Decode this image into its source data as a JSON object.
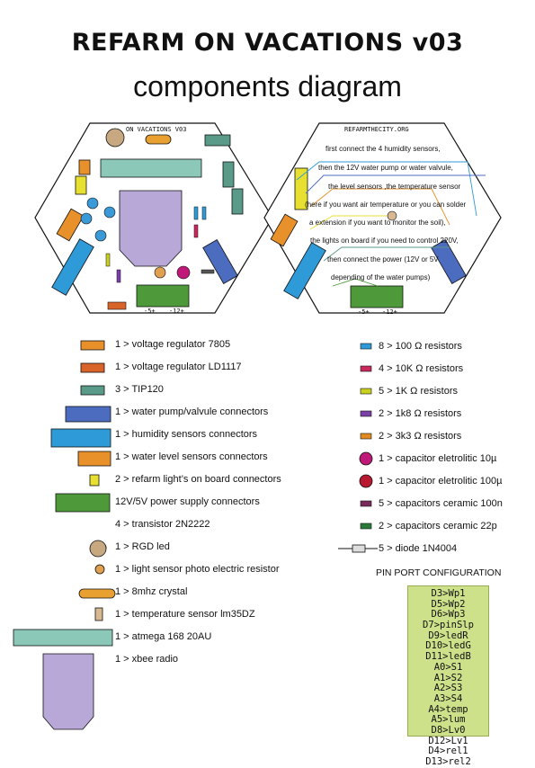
{
  "title": "REFARM ON VACATIONS v03",
  "subtitle": "components diagram",
  "left_board": {
    "label": "ON VACATIONS V03",
    "bottom_labels": [
      "-5+",
      "-12+"
    ]
  },
  "right_board": {
    "label": "REFARMTHECITY.ORG",
    "bottom_labels": [
      "-5+",
      "-12+"
    ],
    "notes": [
      "first connect the 4 humidity sensors,",
      "then the 12V water pump or water valvule,",
      "the level sensors ,the temperature sensor",
      "(here if you want air temperature or you can solder",
      "a extension if you want to monitor the soil),",
      "the lights on board if you need to control 220V,",
      "then connect the power (12V or 5V",
      "depending of the water pumps)"
    ]
  },
  "left_components": [
    {
      "text": "1 > voltage regulator 7805",
      "color": "#e8902a"
    },
    {
      "text": "1 > voltage regulator LD1117",
      "color": "#d8642a"
    },
    {
      "text": "3 > TIP120",
      "color": "#5a9a88"
    },
    {
      "text": "1 > water pump/valvule connectors",
      "color": "#4c6cc0"
    },
    {
      "text": "1 > humidity sensors connectors",
      "color": "#2f9ad8"
    },
    {
      "text": "1 > water level sensors connectors",
      "color": "#e8902a"
    },
    {
      "text": "2 > refarm light’s on board connectors",
      "color": "#e8e030"
    },
    {
      "text": "12V/5V power supply connectors",
      "color": "#4e9a3a"
    },
    {
      "text": "4 > transistor 2N2222",
      "color": "#3a9ad8"
    },
    {
      "text": "1 > RGD led",
      "color": "#c8a880"
    },
    {
      "text": "1 > light sensor photo electric resistor",
      "color": "#e0a050"
    },
    {
      "text": "1 > 8mhz crystal",
      "color": "#e8a030"
    },
    {
      "text": "1 > temperature sensor lm35DZ",
      "color": "#d8b890"
    },
    {
      "text": "1 > atmega 168 20AU",
      "color": "#8cc8b8"
    },
    {
      "text": "1 > xbee radio",
      "color": "#b8a8d8"
    }
  ],
  "right_components": [
    {
      "text": "8 > 100 Ω resistors",
      "color": "#2f9ad8"
    },
    {
      "text": "4 > 10K Ω resistors",
      "color": "#c8285a"
    },
    {
      "text": "5 > 1K Ω resistors",
      "color": "#c8d020"
    },
    {
      "text": "2 > 1k8 Ω resistors",
      "color": "#7a40a8"
    },
    {
      "text": "2 > 3k3 Ω resistors",
      "color": "#e08a20"
    },
    {
      "text": "1 > capacitor eletrolitic 10µ",
      "color": "#c01878"
    },
    {
      "text": "1 > capacitor eletrolitic 100µ",
      "color": "#b81830"
    },
    {
      "text": "5 > capacitors ceramic 100n",
      "color": "#7a2a5a"
    },
    {
      "text": "2 > capacitors ceramic 22p",
      "color": "#2a7a3a"
    },
    {
      "text": "5 > diode 1N4004",
      "color": "#555555"
    }
  ],
  "pin_config": {
    "heading": "PIN PORT CONFIGURATION",
    "lines": [
      "D3>Wp1",
      "D5>Wp2",
      "D6>Wp3",
      "D7>pinSlp",
      "D9>ledR",
      "D10>ledG",
      "D11>ledB",
      "A0>S1",
      "A1>S2",
      "A2>S3",
      "A3>S4",
      "A4>temp",
      "A5>lum",
      "D8>Lv0",
      "D12>Lv1",
      "D4>rel1",
      "D13>rel2"
    ]
  }
}
